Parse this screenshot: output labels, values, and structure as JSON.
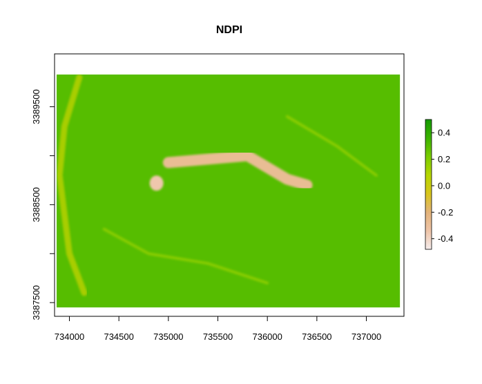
{
  "chart_data": {
    "type": "heatmap",
    "title": "NDPI",
    "xlabel": "",
    "ylabel": "",
    "xlim": [
      733850,
      737380
    ],
    "ylim": [
      3387360,
      3390040
    ],
    "x_ticks": [
      734000,
      734500,
      735000,
      735500,
      736000,
      736500,
      737000
    ],
    "y_ticks_labeled": [
      3387500,
      3388500,
      3389500
    ],
    "y_ticks_unlabeled": [
      3388000,
      3389000
    ],
    "grid": false,
    "legend": {
      "placement": "right",
      "type": "colorbar",
      "min": -0.48,
      "max": 0.5,
      "ticks": [
        0.4,
        0.2,
        0.0,
        -0.2,
        -0.4
      ],
      "tick_labels": [
        "0.4",
        "0.2",
        "0.0",
        "-0.2",
        "-0.4"
      ],
      "colors": [
        "#f5ecec",
        "#eec4a8",
        "#e3b37a",
        "#d8c51c",
        "#b6d600",
        "#7acc00",
        "#3bb200",
        "#149a00"
      ]
    },
    "data_extent": {
      "x": [
        733870,
        737340
      ],
      "y": [
        3387450,
        3389830
      ]
    },
    "background_value": 0.3,
    "regions": [
      {
        "kind": "ridge",
        "x": [
          735000,
          735800,
          736000,
          736200,
          736400
        ],
        "y": [
          3388930,
          3389000,
          3388880,
          3388760,
          3388700
        ],
        "value": -0.28
      },
      {
        "kind": "patch",
        "x": 734880,
        "y": 3388720,
        "value": -0.35
      },
      {
        "kind": "river",
        "x": [
          734100,
          733950,
          733900,
          734000,
          734150
        ],
        "y": [
          3389800,
          3389300,
          3388800,
          3388000,
          3387600
        ],
        "value": 0.05
      },
      {
        "kind": "stream",
        "x": [
          734350,
          734800,
          735400,
          736000
        ],
        "y": [
          3388250,
          3388000,
          3387900,
          3387700
        ],
        "value": 0.15
      },
      {
        "kind": "stream",
        "x": [
          736200,
          736700,
          737100
        ],
        "y": [
          3389400,
          3389100,
          3388800
        ],
        "value": 0.15
      }
    ]
  }
}
